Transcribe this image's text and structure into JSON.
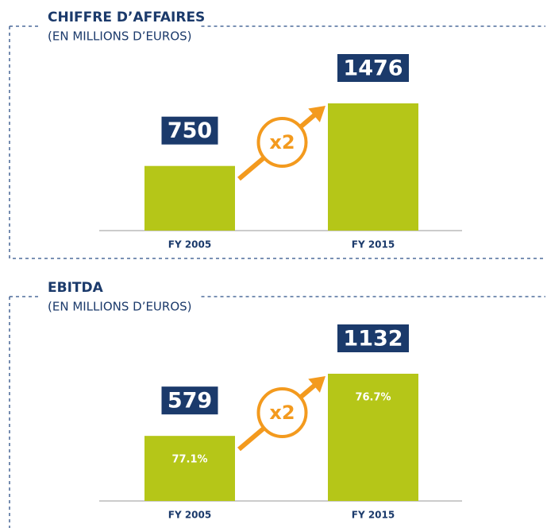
{
  "chart_data": [
    {
      "type": "bar",
      "title": "CHIFFRE D’AFFAIRES",
      "subtitle": "(EN MILLIONS D’EUROS)",
      "categories": [
        "FY 2005",
        "FY 2015"
      ],
      "values": [
        750,
        1476
      ],
      "color": "#b5c618",
      "label_color": "#1b3a6b",
      "annotation": "x2",
      "annotation_color": "#f39a1e"
    },
    {
      "type": "bar",
      "title": "EBITDA",
      "subtitle": "(EN MILLIONS D’EUROS)",
      "categories": [
        "FY 2005",
        "FY 2015"
      ],
      "values": [
        579,
        1132
      ],
      "color": "#b5c618",
      "label_color": "#1b3a6b",
      "inner_labels": [
        "77.1%",
        "76.7%"
      ],
      "annotation": "x2",
      "annotation_color": "#f39a1e"
    }
  ]
}
